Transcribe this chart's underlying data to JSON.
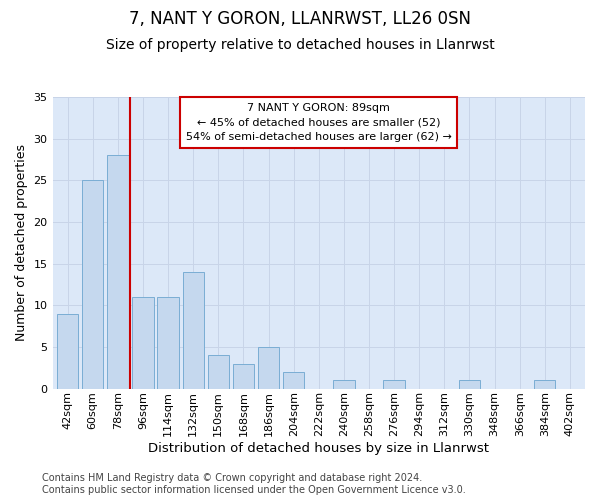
{
  "title1": "7, NANT Y GORON, LLANRWST, LL26 0SN",
  "title2": "Size of property relative to detached houses in Llanrwst",
  "xlabel": "Distribution of detached houses by size in Llanrwst",
  "ylabel": "Number of detached properties",
  "categories": [
    "42sqm",
    "60sqm",
    "78sqm",
    "96sqm",
    "114sqm",
    "132sqm",
    "150sqm",
    "168sqm",
    "186sqm",
    "204sqm",
    "222sqm",
    "240sqm",
    "258sqm",
    "276sqm",
    "294sqm",
    "312sqm",
    "330sqm",
    "348sqm",
    "366sqm",
    "384sqm",
    "402sqm"
  ],
  "values": [
    9,
    25,
    28,
    11,
    11,
    14,
    4,
    3,
    5,
    2,
    0,
    1,
    0,
    1,
    0,
    0,
    1,
    0,
    0,
    1,
    0
  ],
  "bar_color": "#c5d8ee",
  "bar_edgecolor": "#7aadd4",
  "highlight_bar_index": 2,
  "red_line_x": 2.5,
  "annotation_text": "7 NANT Y GORON: 89sqm\n← 45% of detached houses are smaller (52)\n54% of semi-detached houses are larger (62) →",
  "annotation_box_edgecolor": "#cc0000",
  "annotation_box_facecolor": "#ffffff",
  "ylim": [
    0,
    35
  ],
  "yticks": [
    0,
    5,
    10,
    15,
    20,
    25,
    30,
    35
  ],
  "grid_color": "#c8d4e8",
  "bg_color": "#dce8f8",
  "footer": "Contains HM Land Registry data © Crown copyright and database right 2024.\nContains public sector information licensed under the Open Government Licence v3.0.",
  "title1_fontsize": 12,
  "title2_fontsize": 10,
  "xlabel_fontsize": 9.5,
  "ylabel_fontsize": 9,
  "tick_fontsize": 8,
  "footer_fontsize": 7
}
